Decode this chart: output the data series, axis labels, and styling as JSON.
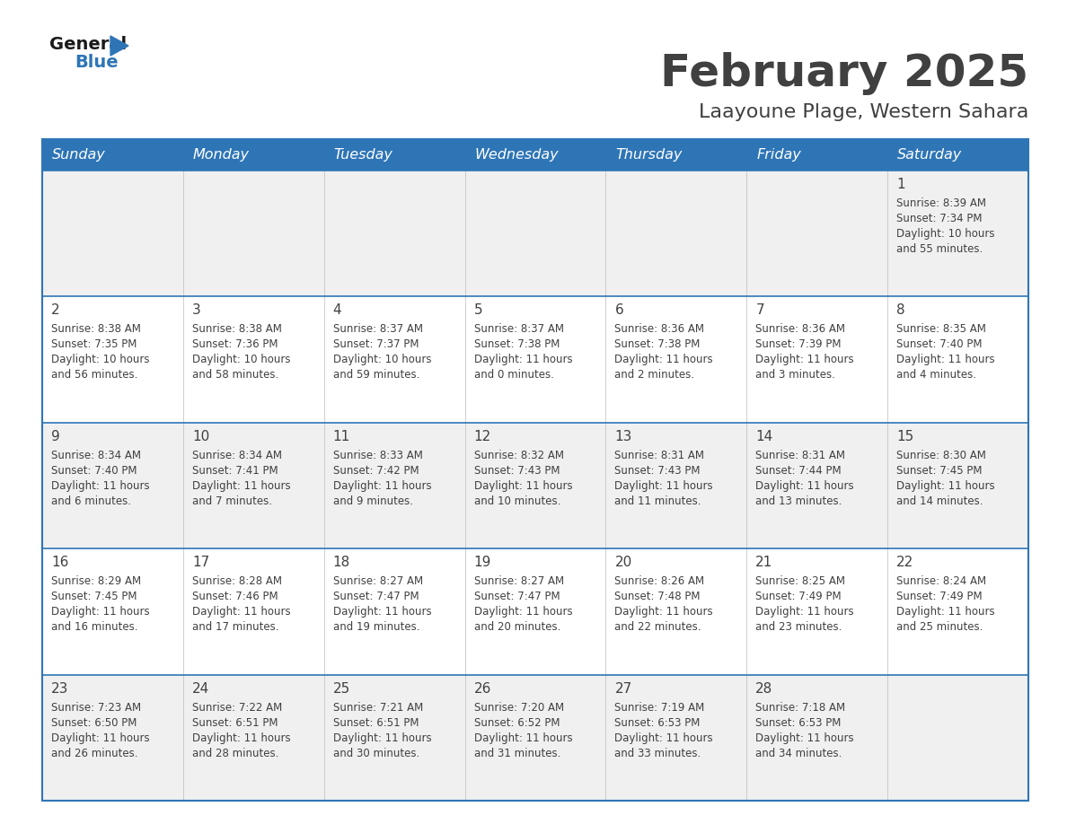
{
  "title": "February 2025",
  "subtitle": "Laayoune Plage, Western Sahara",
  "header_bg": "#2E75B6",
  "header_text_color": "#FFFFFF",
  "cell_bg_odd": "#F0F0F0",
  "cell_bg_even": "#FFFFFF",
  "day_headers": [
    "Sunday",
    "Monday",
    "Tuesday",
    "Wednesday",
    "Thursday",
    "Friday",
    "Saturday"
  ],
  "days": [
    {
      "day": 1,
      "col": 6,
      "row": 0,
      "sunrise": "8:39 AM",
      "sunset": "7:34 PM",
      "daylight_h": "10 hours",
      "daylight_m": "and 55 minutes."
    },
    {
      "day": 2,
      "col": 0,
      "row": 1,
      "sunrise": "8:38 AM",
      "sunset": "7:35 PM",
      "daylight_h": "10 hours",
      "daylight_m": "and 56 minutes."
    },
    {
      "day": 3,
      "col": 1,
      "row": 1,
      "sunrise": "8:38 AM",
      "sunset": "7:36 PM",
      "daylight_h": "10 hours",
      "daylight_m": "and 58 minutes."
    },
    {
      "day": 4,
      "col": 2,
      "row": 1,
      "sunrise": "8:37 AM",
      "sunset": "7:37 PM",
      "daylight_h": "10 hours",
      "daylight_m": "and 59 minutes."
    },
    {
      "day": 5,
      "col": 3,
      "row": 1,
      "sunrise": "8:37 AM",
      "sunset": "7:38 PM",
      "daylight_h": "11 hours",
      "daylight_m": "and 0 minutes."
    },
    {
      "day": 6,
      "col": 4,
      "row": 1,
      "sunrise": "8:36 AM",
      "sunset": "7:38 PM",
      "daylight_h": "11 hours",
      "daylight_m": "and 2 minutes."
    },
    {
      "day": 7,
      "col": 5,
      "row": 1,
      "sunrise": "8:36 AM",
      "sunset": "7:39 PM",
      "daylight_h": "11 hours",
      "daylight_m": "and 3 minutes."
    },
    {
      "day": 8,
      "col": 6,
      "row": 1,
      "sunrise": "8:35 AM",
      "sunset": "7:40 PM",
      "daylight_h": "11 hours",
      "daylight_m": "and 4 minutes."
    },
    {
      "day": 9,
      "col": 0,
      "row": 2,
      "sunrise": "8:34 AM",
      "sunset": "7:40 PM",
      "daylight_h": "11 hours",
      "daylight_m": "and 6 minutes."
    },
    {
      "day": 10,
      "col": 1,
      "row": 2,
      "sunrise": "8:34 AM",
      "sunset": "7:41 PM",
      "daylight_h": "11 hours",
      "daylight_m": "and 7 minutes."
    },
    {
      "day": 11,
      "col": 2,
      "row": 2,
      "sunrise": "8:33 AM",
      "sunset": "7:42 PM",
      "daylight_h": "11 hours",
      "daylight_m": "and 9 minutes."
    },
    {
      "day": 12,
      "col": 3,
      "row": 2,
      "sunrise": "8:32 AM",
      "sunset": "7:43 PM",
      "daylight_h": "11 hours",
      "daylight_m": "and 10 minutes."
    },
    {
      "day": 13,
      "col": 4,
      "row": 2,
      "sunrise": "8:31 AM",
      "sunset": "7:43 PM",
      "daylight_h": "11 hours",
      "daylight_m": "and 11 minutes."
    },
    {
      "day": 14,
      "col": 5,
      "row": 2,
      "sunrise": "8:31 AM",
      "sunset": "7:44 PM",
      "daylight_h": "11 hours",
      "daylight_m": "and 13 minutes."
    },
    {
      "day": 15,
      "col": 6,
      "row": 2,
      "sunrise": "8:30 AM",
      "sunset": "7:45 PM",
      "daylight_h": "11 hours",
      "daylight_m": "and 14 minutes."
    },
    {
      "day": 16,
      "col": 0,
      "row": 3,
      "sunrise": "8:29 AM",
      "sunset": "7:45 PM",
      "daylight_h": "11 hours",
      "daylight_m": "and 16 minutes."
    },
    {
      "day": 17,
      "col": 1,
      "row": 3,
      "sunrise": "8:28 AM",
      "sunset": "7:46 PM",
      "daylight_h": "11 hours",
      "daylight_m": "and 17 minutes."
    },
    {
      "day": 18,
      "col": 2,
      "row": 3,
      "sunrise": "8:27 AM",
      "sunset": "7:47 PM",
      "daylight_h": "11 hours",
      "daylight_m": "and 19 minutes."
    },
    {
      "day": 19,
      "col": 3,
      "row": 3,
      "sunrise": "8:27 AM",
      "sunset": "7:47 PM",
      "daylight_h": "11 hours",
      "daylight_m": "and 20 minutes."
    },
    {
      "day": 20,
      "col": 4,
      "row": 3,
      "sunrise": "8:26 AM",
      "sunset": "7:48 PM",
      "daylight_h": "11 hours",
      "daylight_m": "and 22 minutes."
    },
    {
      "day": 21,
      "col": 5,
      "row": 3,
      "sunrise": "8:25 AM",
      "sunset": "7:49 PM",
      "daylight_h": "11 hours",
      "daylight_m": "and 23 minutes."
    },
    {
      "day": 22,
      "col": 6,
      "row": 3,
      "sunrise": "8:24 AM",
      "sunset": "7:49 PM",
      "daylight_h": "11 hours",
      "daylight_m": "and 25 minutes."
    },
    {
      "day": 23,
      "col": 0,
      "row": 4,
      "sunrise": "7:23 AM",
      "sunset": "6:50 PM",
      "daylight_h": "11 hours",
      "daylight_m": "and 26 minutes."
    },
    {
      "day": 24,
      "col": 1,
      "row": 4,
      "sunrise": "7:22 AM",
      "sunset": "6:51 PM",
      "daylight_h": "11 hours",
      "daylight_m": "and 28 minutes."
    },
    {
      "day": 25,
      "col": 2,
      "row": 4,
      "sunrise": "7:21 AM",
      "sunset": "6:51 PM",
      "daylight_h": "11 hours",
      "daylight_m": "and 30 minutes."
    },
    {
      "day": 26,
      "col": 3,
      "row": 4,
      "sunrise": "7:20 AM",
      "sunset": "6:52 PM",
      "daylight_h": "11 hours",
      "daylight_m": "and 31 minutes."
    },
    {
      "day": 27,
      "col": 4,
      "row": 4,
      "sunrise": "7:19 AM",
      "sunset": "6:53 PM",
      "daylight_h": "11 hours",
      "daylight_m": "and 33 minutes."
    },
    {
      "day": 28,
      "col": 5,
      "row": 4,
      "sunrise": "7:18 AM",
      "sunset": "6:53 PM",
      "daylight_h": "11 hours",
      "daylight_m": "and 34 minutes."
    }
  ],
  "num_rows": 5,
  "num_cols": 7,
  "border_color": "#2E75B6",
  "divider_color": "#2E75B6",
  "text_color": "#404040",
  "day_num_color": "#404040",
  "logo_general_color": "#1a1a1a",
  "logo_blue_color": "#2E75B6"
}
